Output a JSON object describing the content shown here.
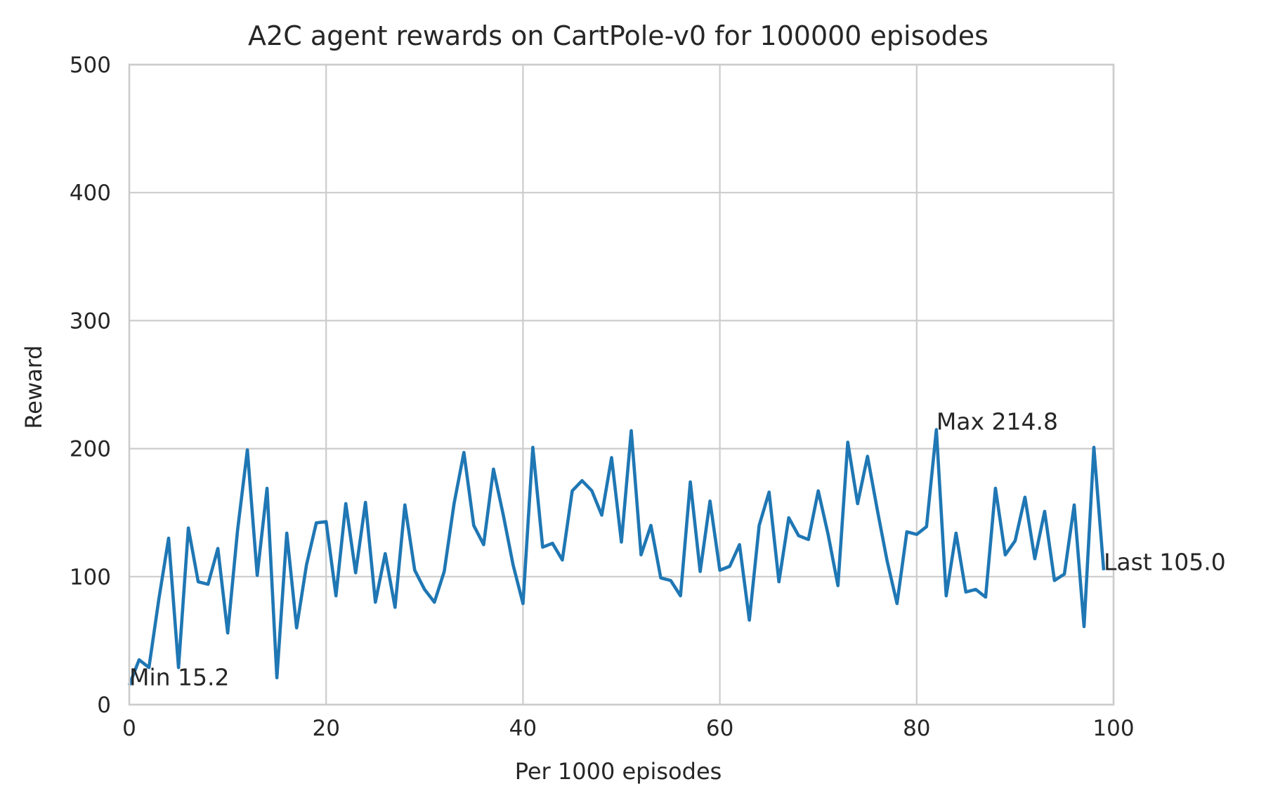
{
  "chart_data": {
    "type": "line",
    "title": "A2C agent rewards on CartPole-v0 for 100000 episodes",
    "xlabel": "Per 1000 episodes",
    "ylabel": "Reward",
    "xlim": [
      0,
      100
    ],
    "ylim": [
      0,
      500
    ],
    "xticks": [
      0,
      20,
      40,
      60,
      80,
      100
    ],
    "yticks": [
      0,
      100,
      200,
      300,
      400,
      500
    ],
    "grid": true,
    "legend": "none",
    "series": [
      {
        "color": "#1f77b4",
        "x": [
          0,
          1,
          2,
          3,
          4,
          5,
          6,
          7,
          8,
          9,
          10,
          11,
          12,
          13,
          14,
          15,
          16,
          17,
          18,
          19,
          20,
          21,
          22,
          23,
          24,
          25,
          26,
          27,
          28,
          29,
          30,
          31,
          32,
          33,
          34,
          35,
          36,
          37,
          38,
          39,
          40,
          41,
          42,
          43,
          44,
          45,
          46,
          47,
          48,
          49,
          50,
          51,
          52,
          53,
          54,
          55,
          56,
          57,
          58,
          59,
          60,
          61,
          62,
          63,
          64,
          65,
          66,
          67,
          68,
          69,
          70,
          71,
          72,
          73,
          74,
          75,
          76,
          77,
          78,
          79,
          80,
          81,
          82,
          83,
          84,
          85,
          86,
          87,
          88,
          89,
          90,
          91,
          92,
          93,
          94,
          95,
          96,
          97,
          98,
          99
        ],
        "y": [
          15.2,
          35,
          29,
          82,
          130,
          29,
          138,
          96,
          94,
          122,
          56,
          136,
          199,
          101,
          169,
          21,
          134,
          60,
          109,
          142,
          143,
          85,
          157,
          103,
          158,
          80,
          118,
          76,
          156,
          105,
          90,
          80,
          104,
          157,
          197,
          140,
          125,
          184,
          148,
          109,
          79,
          201,
          123,
          126,
          113,
          167,
          175,
          167,
          148,
          193,
          127,
          214,
          117,
          140,
          99,
          97,
          85,
          174,
          104,
          159,
          105,
          108,
          125,
          66,
          140,
          166,
          96,
          146,
          132,
          129,
          167,
          133,
          93,
          205,
          157,
          194,
          152,
          112,
          79,
          135,
          133,
          139,
          214.8,
          85,
          134,
          88,
          90,
          84,
          169,
          117,
          128,
          162,
          114,
          151,
          97,
          102,
          156,
          61,
          201,
          105.0
        ]
      }
    ],
    "annotations": [
      {
        "text": "Min 15.2",
        "x": 0,
        "y": 15.2
      },
      {
        "text": "Max 214.8",
        "x": 82,
        "y": 214.8
      },
      {
        "text": "Last 105.0",
        "x": 99,
        "y": 105.0
      }
    ]
  }
}
